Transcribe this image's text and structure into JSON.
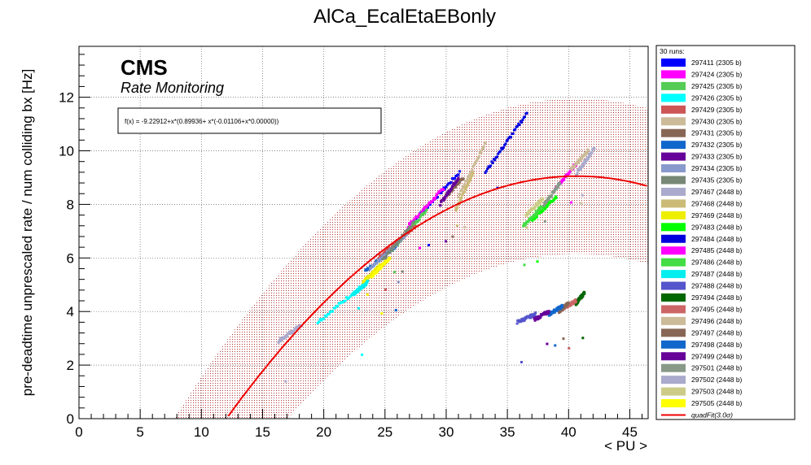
{
  "chart_data": {
    "type": "scatter",
    "title": "AlCa_EcalEtaEBonly",
    "xlabel": "< PU >",
    "ylabel": "pre-deadtime unprescaled rate / num colliding bx [Hz]",
    "xlim": [
      0,
      46.5
    ],
    "ylim": [
      0,
      13.9
    ],
    "x_ticks": [
      0,
      5,
      10,
      15,
      20,
      25,
      30,
      35,
      40,
      45
    ],
    "y_ticks": [
      0,
      2,
      4,
      6,
      8,
      10,
      12
    ],
    "grid": true,
    "annotations": {
      "experiment": "CMS",
      "subtitle": "Rate Monitoring"
    },
    "fit": {
      "label": "f(x) = -9.22912+x*(0.89936+ x*(-0.01106+x*0.00000))",
      "legend_label": "quadFit(3.0σ)",
      "a": -9.22912,
      "b": 0.89936,
      "c": -0.01106,
      "band_halfwidth": 2.9,
      "color": "#ee0000"
    },
    "legend_header": "30 runs:",
    "legend_position": "right",
    "series": [
      {
        "name": "297411 (2305 b)",
        "color": "#0000ff",
        "x_range": [
          27.2,
          31.1
        ],
        "y_range": [
          7.3,
          9.2
        ]
      },
      {
        "name": "297424 (2305 b)",
        "color": "#ff00ff",
        "x_range": [
          26.9,
          29.8
        ],
        "y_range": [
          7.2,
          8.6
        ]
      },
      {
        "name": "297425 (2305 b)",
        "color": "#55cc55",
        "x_range": [
          25.6,
          28.4
        ],
        "y_range": [
          6.3,
          7.8
        ]
      },
      {
        "name": "297426 (2305 b)",
        "color": "#00ffff",
        "x_range": [
          19.5,
          23.5
        ],
        "y_range": [
          3.6,
          5.1
        ]
      },
      {
        "name": "297429 (2305 b)",
        "color": "#cc5555",
        "x_range": [
          24.5,
          27.5
        ],
        "y_range": [
          6.0,
          7.2
        ]
      },
      {
        "name": "297430 (2305 b)",
        "color": "#ccbb99",
        "x_range": [
          31.0,
          33.2
        ],
        "y_range": [
          8.3,
          10.3
        ]
      },
      {
        "name": "297431 (2305 b)",
        "color": "#886655",
        "x_range": [
          30.0,
          31.4
        ],
        "y_range": [
          8.3,
          9.0
        ]
      },
      {
        "name": "297432 (2305 b)",
        "color": "#1166cc",
        "x_range": [
          23.4,
          26.0
        ],
        "y_range": [
          5.5,
          6.5
        ]
      },
      {
        "name": "297433 (2305 b)",
        "color": "#660099",
        "x_range": [
          29.5,
          31.0
        ],
        "y_range": [
          8.0,
          9.0
        ]
      },
      {
        "name": "297434 (2305 b)",
        "color": "#8899cc",
        "x_range": [
          23.8,
          26.8
        ],
        "y_range": [
          5.6,
          6.9
        ]
      },
      {
        "name": "297435 (2305 b)",
        "color": "#778877",
        "x_range": [
          24.8,
          27.3
        ],
        "y_range": [
          5.9,
          7.3
        ]
      },
      {
        "name": "297467 (2448 b)",
        "color": "#aaaacc",
        "x_range": [
          16.3,
          18.2
        ],
        "y_range": [
          2.9,
          3.5
        ]
      },
      {
        "name": "297468 (2448 b)",
        "color": "#ccbb77",
        "x_range": [
          30.8,
          32.2
        ],
        "y_range": [
          7.8,
          9.2
        ]
      },
      {
        "name": "297469 (2448 b)",
        "color": "#eeee00",
        "x_range": [
          23.2,
          24.6
        ],
        "y_range": [
          5.1,
          5.7
        ]
      },
      {
        "name": "297483 (2448 b)",
        "color": "#00ff00",
        "x_range": [
          37.0,
          39.0
        ],
        "y_range": [
          7.4,
          8.3
        ]
      },
      {
        "name": "297484 (2448 b)",
        "color": "#0000dd",
        "x_range": [
          33.2,
          36.6
        ],
        "y_range": [
          9.2,
          11.4
        ]
      },
      {
        "name": "297485 (2448 b)",
        "color": "#ff00ff",
        "x_range": [
          38.8,
          40.6
        ],
        "y_range": [
          8.5,
          9.5
        ]
      },
      {
        "name": "297486 (2448 b)",
        "color": "#44dd44",
        "x_range": [
          36.3,
          37.8
        ],
        "y_range": [
          7.2,
          7.9
        ]
      },
      {
        "name": "297487 (2448 b)",
        "color": "#00eeee",
        "x_range": [
          22.3,
          23.6
        ],
        "y_range": [
          4.6,
          5.1
        ]
      },
      {
        "name": "297488 (2448 b)",
        "color": "#5555cc",
        "x_range": [
          35.8,
          37.3
        ],
        "y_range": [
          3.6,
          3.9
        ]
      },
      {
        "name": "297494 (2448 b)",
        "color": "#006600",
        "x_range": [
          40.6,
          41.3
        ],
        "y_range": [
          4.3,
          4.7
        ]
      },
      {
        "name": "297495 (2448 b)",
        "color": "#cc6666",
        "x_range": [
          39.5,
          40.6
        ],
        "y_range": [
          4.1,
          4.4
        ]
      },
      {
        "name": "297496 (2448 b)",
        "color": "#ccbb99",
        "x_range": [
          40.2,
          41.6
        ],
        "y_range": [
          9.3,
          10.0
        ]
      },
      {
        "name": "297497 (2448 b)",
        "color": "#886655",
        "x_range": [
          39.2,
          40.0
        ],
        "y_range": [
          4.0,
          4.3
        ]
      },
      {
        "name": "297498 (2448 b)",
        "color": "#1166cc",
        "x_range": [
          38.4,
          39.5
        ],
        "y_range": [
          3.9,
          4.2
        ]
      },
      {
        "name": "297499 (2448 b)",
        "color": "#660099",
        "x_range": [
          37.2,
          38.4
        ],
        "y_range": [
          3.7,
          4.0
        ]
      },
      {
        "name": "297501 (2448 b)",
        "color": "#889988",
        "x_range": [
          38.0,
          39.3
        ],
        "y_range": [
          8.0,
          8.8
        ]
      },
      {
        "name": "297502 (2448 b)",
        "color": "#aaaacc",
        "x_range": [
          40.6,
          42.1
        ],
        "y_range": [
          9.1,
          10.1
        ]
      },
      {
        "name": "297503 (2448 b)",
        "color": "#cccc88",
        "x_range": [
          36.5,
          37.9
        ],
        "y_range": [
          7.6,
          8.2
        ]
      },
      {
        "name": "297505 (2448 b)",
        "color": "#ffff00",
        "x_range": [
          23.9,
          25.4
        ],
        "y_range": [
          5.3,
          6.0
        ]
      }
    ]
  }
}
